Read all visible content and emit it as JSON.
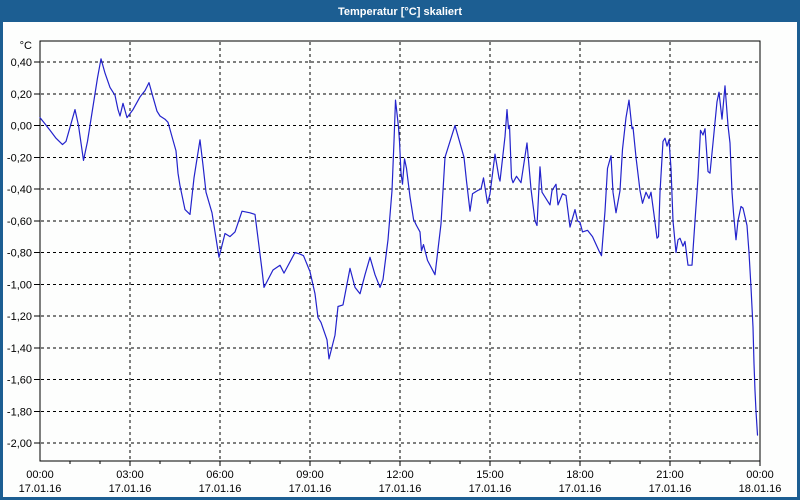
{
  "window": {
    "title": "Temperatur [°C] skaliert"
  },
  "colors": {
    "titlebar": "#1c5e92",
    "border": "#1c5e92",
    "line": "#2323cc",
    "grid": "#000000",
    "background": "#fdfefd",
    "text": "#000000"
  },
  "chart_data": {
    "type": "line",
    "title": "Temperatur [°C] skaliert",
    "y_unit": "°C",
    "grid": true,
    "ylim": [
      -2.11,
      0.53
    ],
    "xlim_hours": [
      0,
      24
    ],
    "y_ticks": [
      {
        "value": 0.4,
        "label": "0,40"
      },
      {
        "value": 0.2,
        "label": "0,20"
      },
      {
        "value": 0.0,
        "label": "0,00"
      },
      {
        "value": -0.2,
        "label": "-0,20"
      },
      {
        "value": -0.4,
        "label": "-0,40"
      },
      {
        "value": -0.6,
        "label": "-0,60"
      },
      {
        "value": -0.8,
        "label": "-0,80"
      },
      {
        "value": -1.0,
        "label": "-1,00"
      },
      {
        "value": -1.2,
        "label": "-1,20"
      },
      {
        "value": -1.4,
        "label": "-1,40"
      },
      {
        "value": -1.6,
        "label": "-1,60"
      },
      {
        "value": -1.8,
        "label": "-1,80"
      },
      {
        "value": -2.0,
        "label": "-2,00"
      }
    ],
    "x_ticks": [
      {
        "hour": 0,
        "time": "00:00",
        "date": "17.01.16"
      },
      {
        "hour": 3,
        "time": "03:00",
        "date": "17.01.16"
      },
      {
        "hour": 6,
        "time": "06:00",
        "date": "17.01.16"
      },
      {
        "hour": 9,
        "time": "09:00",
        "date": "17.01.16"
      },
      {
        "hour": 12,
        "time": "12:00",
        "date": "17.01.16"
      },
      {
        "hour": 15,
        "time": "15:00",
        "date": "17.01.16"
      },
      {
        "hour": 18,
        "time": "18:00",
        "date": "17.01.16"
      },
      {
        "hour": 21,
        "time": "21:00",
        "date": "17.01.16"
      },
      {
        "hour": 24,
        "time": "00:00",
        "date": "18.01.16"
      }
    ],
    "series": [
      {
        "name": "temperatur",
        "color": "#2323cc",
        "points": [
          [
            0,
            0.05
          ],
          [
            10,
            0.01
          ],
          [
            20,
            -0.03
          ],
          [
            32,
            -0.08
          ],
          [
            45,
            -0.12
          ],
          [
            52,
            -0.1
          ],
          [
            70,
            0.1
          ],
          [
            77,
            0.0
          ],
          [
            87,
            -0.22
          ],
          [
            95,
            -0.1
          ],
          [
            105,
            0.1
          ],
          [
            115,
            0.3
          ],
          [
            122,
            0.42
          ],
          [
            130,
            0.33
          ],
          [
            140,
            0.24
          ],
          [
            150,
            0.19
          ],
          [
            156,
            0.1
          ],
          [
            160,
            0.06
          ],
          [
            166,
            0.14
          ],
          [
            174,
            0.05
          ],
          [
            186,
            0.1
          ],
          [
            200,
            0.18
          ],
          [
            210,
            0.22
          ],
          [
            218,
            0.27
          ],
          [
            225,
            0.19
          ],
          [
            234,
            0.09
          ],
          [
            240,
            0.06
          ],
          [
            250,
            0.04
          ],
          [
            256,
            0.02
          ],
          [
            264,
            -0.07
          ],
          [
            272,
            -0.16
          ],
          [
            276,
            -0.3
          ],
          [
            280,
            -0.38
          ],
          [
            290,
            -0.53
          ],
          [
            300,
            -0.56
          ],
          [
            308,
            -0.33
          ],
          [
            320,
            -0.09
          ],
          [
            326,
            -0.25
          ],
          [
            332,
            -0.42
          ],
          [
            344,
            -0.55
          ],
          [
            358,
            -0.83
          ],
          [
            370,
            -0.68
          ],
          [
            380,
            -0.7
          ],
          [
            390,
            -0.67
          ],
          [
            404,
            -0.54
          ],
          [
            420,
            -0.55
          ],
          [
            430,
            -0.56
          ],
          [
            444,
            -0.91
          ],
          [
            448,
            -1.02
          ],
          [
            466,
            -0.91
          ],
          [
            480,
            -0.88
          ],
          [
            488,
            -0.93
          ],
          [
            510,
            -0.8
          ],
          [
            520,
            -0.81
          ],
          [
            527,
            -0.82
          ],
          [
            540,
            -0.92
          ],
          [
            550,
            -1.06
          ],
          [
            556,
            -1.21
          ],
          [
            562,
            -1.24
          ],
          [
            574,
            -1.35
          ],
          [
            578,
            -1.47
          ],
          [
            590,
            -1.32
          ],
          [
            596,
            -1.14
          ],
          [
            606,
            -1.13
          ],
          [
            620,
            -0.9
          ],
          [
            630,
            -1.02
          ],
          [
            640,
            -1.06
          ],
          [
            650,
            -0.94
          ],
          [
            660,
            -0.83
          ],
          [
            670,
            -0.94
          ],
          [
            680,
            -1.02
          ],
          [
            686,
            -0.97
          ],
          [
            696,
            -0.72
          ],
          [
            704,
            -0.41
          ],
          [
            708,
            -0.1
          ],
          [
            711,
            0.16
          ],
          [
            717,
            -0.01
          ],
          [
            719,
            -0.1
          ],
          [
            722,
            -0.3
          ],
          [
            725,
            -0.37
          ],
          [
            729,
            -0.21
          ],
          [
            733,
            -0.27
          ],
          [
            740,
            -0.45
          ],
          [
            747,
            -0.59
          ],
          [
            753,
            -0.63
          ],
          [
            760,
            -0.67
          ],
          [
            763,
            -0.79
          ],
          [
            767,
            -0.75
          ],
          [
            775,
            -0.85
          ],
          [
            790,
            -0.94
          ],
          [
            802,
            -0.62
          ],
          [
            810,
            -0.2
          ],
          [
            830,
            0.0
          ],
          [
            848,
            -0.2
          ],
          [
            853,
            -0.35
          ],
          [
            860,
            -0.54
          ],
          [
            865,
            -0.43
          ],
          [
            875,
            -0.41
          ],
          [
            882,
            -0.4
          ],
          [
            887,
            -0.33
          ],
          [
            895,
            -0.49
          ],
          [
            900,
            -0.43
          ],
          [
            910,
            -0.18
          ],
          [
            918,
            -0.33
          ],
          [
            920,
            -0.35
          ],
          [
            930,
            -0.07
          ],
          [
            934,
            0.1
          ],
          [
            937,
            -0.02
          ],
          [
            939,
            0.0
          ],
          [
            943,
            -0.33
          ],
          [
            946,
            -0.36
          ],
          [
            953,
            -0.32
          ],
          [
            962,
            -0.36
          ],
          [
            974,
            -0.11
          ],
          [
            982,
            -0.4
          ],
          [
            990,
            -0.6
          ],
          [
            994,
            -0.63
          ],
          [
            1000,
            -0.26
          ],
          [
            1004,
            -0.42
          ],
          [
            1020,
            -0.5
          ],
          [
            1024,
            -0.41
          ],
          [
            1032,
            -0.37
          ],
          [
            1036,
            -0.5
          ],
          [
            1045,
            -0.43
          ],
          [
            1052,
            -0.44
          ],
          [
            1060,
            -0.64
          ],
          [
            1070,
            -0.53
          ],
          [
            1075,
            -0.6
          ],
          [
            1080,
            -0.61
          ],
          [
            1085,
            -0.67
          ],
          [
            1095,
            -0.66
          ],
          [
            1105,
            -0.7
          ],
          [
            1118,
            -0.79
          ],
          [
            1123,
            -0.82
          ],
          [
            1130,
            -0.54
          ],
          [
            1135,
            -0.27
          ],
          [
            1142,
            -0.19
          ],
          [
            1146,
            -0.42
          ],
          [
            1152,
            -0.55
          ],
          [
            1160,
            -0.41
          ],
          [
            1165,
            -0.15
          ],
          [
            1172,
            0.05
          ],
          [
            1178,
            0.16
          ],
          [
            1184,
            -0.02
          ],
          [
            1186,
            -0.01
          ],
          [
            1192,
            -0.2
          ],
          [
            1200,
            -0.41
          ],
          [
            1205,
            -0.49
          ],
          [
            1212,
            -0.42
          ],
          [
            1218,
            -0.46
          ],
          [
            1222,
            -0.42
          ],
          [
            1228,
            -0.56
          ],
          [
            1234,
            -0.71
          ],
          [
            1237,
            -0.7
          ],
          [
            1240,
            -0.42
          ],
          [
            1246,
            -0.1
          ],
          [
            1250,
            -0.08
          ],
          [
            1254,
            -0.13
          ],
          [
            1258,
            -0.09
          ],
          [
            1262,
            -0.27
          ],
          [
            1266,
            -0.6
          ],
          [
            1272,
            -0.8
          ],
          [
            1276,
            -0.72
          ],
          [
            1280,
            -0.71
          ],
          [
            1286,
            -0.76
          ],
          [
            1290,
            -0.73
          ],
          [
            1296,
            -0.88
          ],
          [
            1304,
            -0.88
          ],
          [
            1310,
            -0.6
          ],
          [
            1316,
            -0.33
          ],
          [
            1321,
            -0.03
          ],
          [
            1326,
            -0.06
          ],
          [
            1330,
            -0.02
          ],
          [
            1336,
            -0.29
          ],
          [
            1340,
            -0.3
          ],
          [
            1346,
            -0.11
          ],
          [
            1354,
            0.15
          ],
          [
            1358,
            0.21
          ],
          [
            1364,
            0.04
          ],
          [
            1370,
            0.25
          ],
          [
            1376,
            0.0
          ],
          [
            1380,
            -0.11
          ],
          [
            1384,
            -0.42
          ],
          [
            1387,
            -0.55
          ],
          [
            1392,
            -0.72
          ],
          [
            1396,
            -0.6
          ],
          [
            1402,
            -0.51
          ],
          [
            1406,
            -0.52
          ],
          [
            1414,
            -0.63
          ],
          [
            1418,
            -0.8
          ],
          [
            1422,
            -1.02
          ],
          [
            1426,
            -1.27
          ],
          [
            1428,
            -1.5
          ],
          [
            1430,
            -1.67
          ],
          [
            1432,
            -1.8
          ],
          [
            1435,
            -1.95
          ]
        ]
      }
    ]
  }
}
